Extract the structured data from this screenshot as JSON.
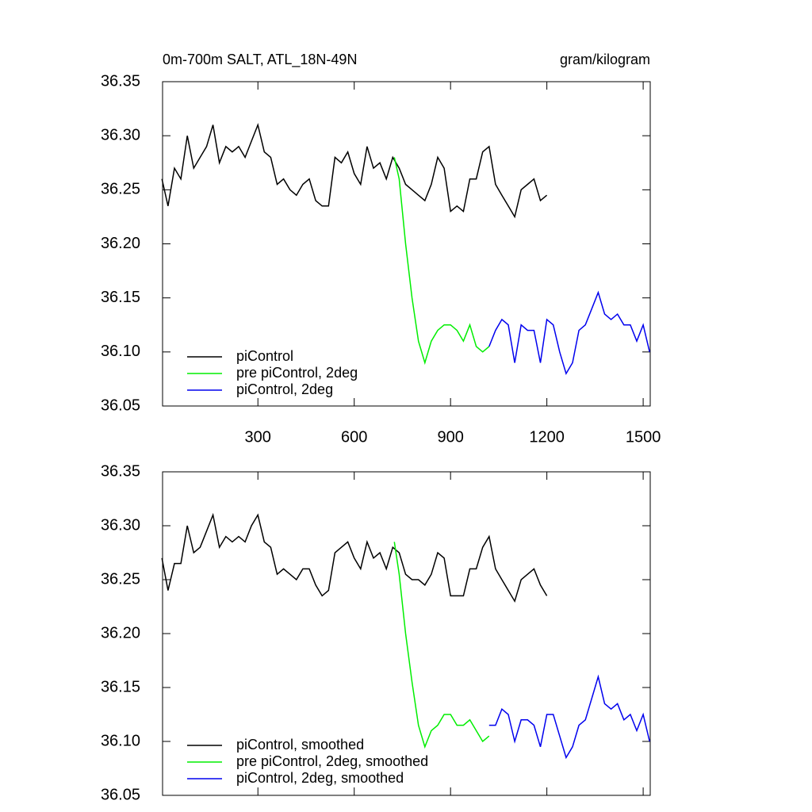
{
  "chart_data": [
    {
      "type": "line",
      "title": "0m-700m SALT, ATL_18N-49N",
      "subtitle": "gram/kilogram",
      "xlim": [
        3,
        1522
      ],
      "ylim": [
        36.05,
        36.35
      ],
      "xticks": [
        300,
        600,
        900,
        1200,
        1500
      ],
      "yticks": [
        36.05,
        {
          "value": 36.1,
          "label": "36.10"
        },
        36.15,
        {
          "value": 36.2,
          "label": "36.20"
        },
        36.25,
        {
          "value": 36.3,
          "label": "36.30"
        },
        36.35
      ],
      "series": [
        {
          "name": "piControl",
          "color": "#000000",
          "x": [
            1,
            20,
            40,
            60,
            80,
            100,
            120,
            140,
            160,
            180,
            200,
            220,
            240,
            260,
            280,
            300,
            320,
            340,
            360,
            380,
            400,
            420,
            440,
            460,
            480,
            500,
            520,
            540,
            560,
            580,
            600,
            620,
            640,
            660,
            680,
            700,
            720,
            740,
            760,
            780,
            800,
            820,
            840,
            860,
            880,
            900,
            920,
            940,
            960,
            980,
            1000,
            1020,
            1040,
            1060,
            1080,
            1100,
            1120,
            1140,
            1160,
            1180,
            1200
          ],
          "values": [
            36.26,
            36.235,
            36.27,
            36.26,
            36.3,
            36.27,
            36.28,
            36.29,
            36.31,
            36.275,
            36.29,
            36.285,
            36.29,
            36.28,
            36.295,
            36.31,
            36.285,
            36.28,
            36.255,
            36.26,
            36.25,
            36.245,
            36.255,
            36.26,
            36.24,
            36.235,
            36.235,
            36.28,
            36.275,
            36.285,
            36.265,
            36.255,
            36.29,
            36.27,
            36.275,
            36.26,
            36.28,
            36.27,
            36.255,
            36.25,
            36.245,
            36.24,
            36.255,
            36.28,
            36.27,
            36.23,
            36.235,
            36.23,
            36.26,
            36.26,
            36.285,
            36.29,
            36.255,
            36.245,
            36.235,
            36.225,
            36.25,
            36.255,
            36.26,
            36.24,
            36.245
          ]
        },
        {
          "name": "pre piControl, 2deg",
          "color": "#00ee00",
          "x": [
            725,
            740,
            760,
            780,
            800,
            820,
            840,
            860,
            880,
            900,
            920,
            940,
            960,
            980,
            1000,
            1020
          ],
          "values": [
            36.28,
            36.26,
            36.2,
            36.15,
            36.11,
            36.09,
            36.11,
            36.12,
            36.125,
            36.125,
            36.12,
            36.11,
            36.125,
            36.105,
            36.1,
            36.105
          ]
        },
        {
          "name": "piControl, 2deg",
          "color": "#0000ee",
          "x": [
            1020,
            1040,
            1060,
            1080,
            1100,
            1120,
            1140,
            1160,
            1180,
            1200,
            1220,
            1240,
            1260,
            1280,
            1300,
            1320,
            1340,
            1360,
            1380,
            1400,
            1420,
            1440,
            1460,
            1480,
            1500,
            1520
          ],
          "values": [
            36.105,
            36.12,
            36.13,
            36.125,
            36.09,
            36.125,
            36.12,
            36.12,
            36.09,
            36.13,
            36.125,
            36.1,
            36.08,
            36.09,
            36.12,
            36.125,
            36.14,
            36.155,
            36.135,
            36.13,
            36.135,
            36.125,
            36.125,
            36.11,
            36.125,
            36.1
          ]
        }
      ]
    },
    {
      "type": "line",
      "xlim": [
        3,
        1522
      ],
      "ylim": [
        36.05,
        36.35
      ],
      "xticks": [
        300,
        600,
        900,
        1200,
        1500
      ],
      "yticks": [
        36.05,
        {
          "value": 36.1,
          "label": "36.10"
        },
        36.15,
        {
          "value": 36.2,
          "label": "36.20"
        },
        36.25,
        {
          "value": 36.3,
          "label": "36.30"
        },
        36.35
      ],
      "series": [
        {
          "name": "piControl, smoothed",
          "color": "#000000",
          "x": [
            1,
            20,
            40,
            60,
            80,
            100,
            120,
            140,
            160,
            180,
            200,
            220,
            240,
            260,
            280,
            300,
            320,
            340,
            360,
            380,
            400,
            420,
            440,
            460,
            480,
            500,
            520,
            540,
            560,
            580,
            600,
            620,
            640,
            660,
            680,
            700,
            720,
            740,
            760,
            780,
            800,
            820,
            840,
            860,
            880,
            900,
            920,
            940,
            960,
            980,
            1000,
            1020,
            1040,
            1060,
            1080,
            1100,
            1120,
            1140,
            1160,
            1180,
            1200
          ],
          "values": [
            36.27,
            36.24,
            36.265,
            36.265,
            36.3,
            36.275,
            36.28,
            36.295,
            36.31,
            36.28,
            36.29,
            36.285,
            36.29,
            36.285,
            36.3,
            36.31,
            36.285,
            36.28,
            36.255,
            36.26,
            36.255,
            36.25,
            36.26,
            36.26,
            36.245,
            36.235,
            36.24,
            36.275,
            36.28,
            36.285,
            36.27,
            36.26,
            36.285,
            36.27,
            36.275,
            36.26,
            36.28,
            36.275,
            36.255,
            36.25,
            36.25,
            36.245,
            36.255,
            36.275,
            36.27,
            36.235,
            36.235,
            36.235,
            36.26,
            36.26,
            36.28,
            36.29,
            36.26,
            36.25,
            36.24,
            36.23,
            36.25,
            36.255,
            36.26,
            36.245,
            36.235
          ]
        },
        {
          "name": "pre piControl, 2deg, smoothed",
          "color": "#00ee00",
          "x": [
            725,
            740,
            760,
            780,
            800,
            820,
            840,
            860,
            880,
            900,
            920,
            940,
            960,
            980,
            1000,
            1020
          ],
          "values": [
            36.285,
            36.255,
            36.2,
            36.155,
            36.115,
            36.095,
            36.11,
            36.115,
            36.125,
            36.125,
            36.115,
            36.115,
            36.12,
            36.11,
            36.1,
            36.105
          ]
        },
        {
          "name": "piControl, 2deg, smoothed",
          "color": "#0000ee",
          "x": [
            1020,
            1040,
            1060,
            1080,
            1100,
            1120,
            1140,
            1160,
            1180,
            1200,
            1220,
            1240,
            1260,
            1280,
            1300,
            1320,
            1340,
            1360,
            1380,
            1400,
            1420,
            1440,
            1460,
            1480,
            1500,
            1520
          ],
          "values": [
            36.115,
            36.115,
            36.13,
            36.125,
            36.1,
            36.12,
            36.12,
            36.115,
            36.095,
            36.125,
            36.125,
            36.105,
            36.085,
            36.095,
            36.115,
            36.12,
            36.14,
            36.16,
            36.135,
            36.13,
            36.135,
            36.12,
            36.125,
            36.11,
            36.125,
            36.1
          ]
        }
      ]
    }
  ]
}
